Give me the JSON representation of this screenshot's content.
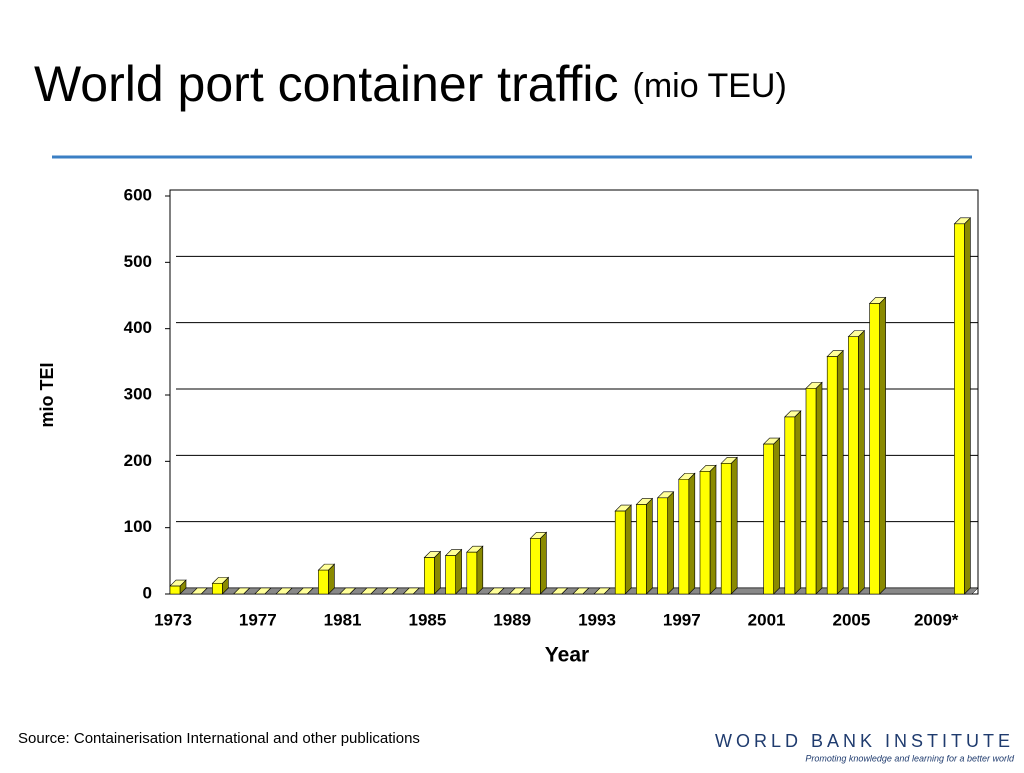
{
  "chart_data": {
    "type": "bar3d",
    "title": "World port container traffic",
    "subtitle": "(mio TEU)",
    "y_label": "mio TEI",
    "x_label": "Year",
    "source": "Source: Containerisation International and other publications",
    "logo": "WORLD BANK INSTITUTE",
    "tagline": "Promoting knowledge and learning for a better world",
    "categories": [
      "1973",
      null,
      null,
      null,
      "1977",
      null,
      null,
      null,
      "1981",
      null,
      null,
      null,
      "1985",
      null,
      null,
      null,
      "1989",
      null,
      null,
      null,
      "1993",
      null,
      null,
      null,
      "1997",
      null,
      null,
      null,
      "2001",
      null,
      null,
      null,
      "2005",
      null,
      null,
      null,
      "2009*",
      null
    ],
    "values": [
      12,
      0,
      16,
      0,
      0,
      0,
      0,
      36,
      0,
      0,
      0,
      0,
      55,
      58,
      63,
      0,
      0,
      84,
      0,
      0,
      0,
      125,
      135,
      145,
      173,
      185,
      197,
      null,
      226,
      267,
      310,
      358,
      388,
      438,
      null,
      null,
      null,
      558
    ],
    "color": "#ffff00",
    "ylim": [
      0,
      600
    ],
    "yticks": [
      0,
      100,
      200,
      300,
      400,
      500,
      600
    ],
    "grid": true
  }
}
